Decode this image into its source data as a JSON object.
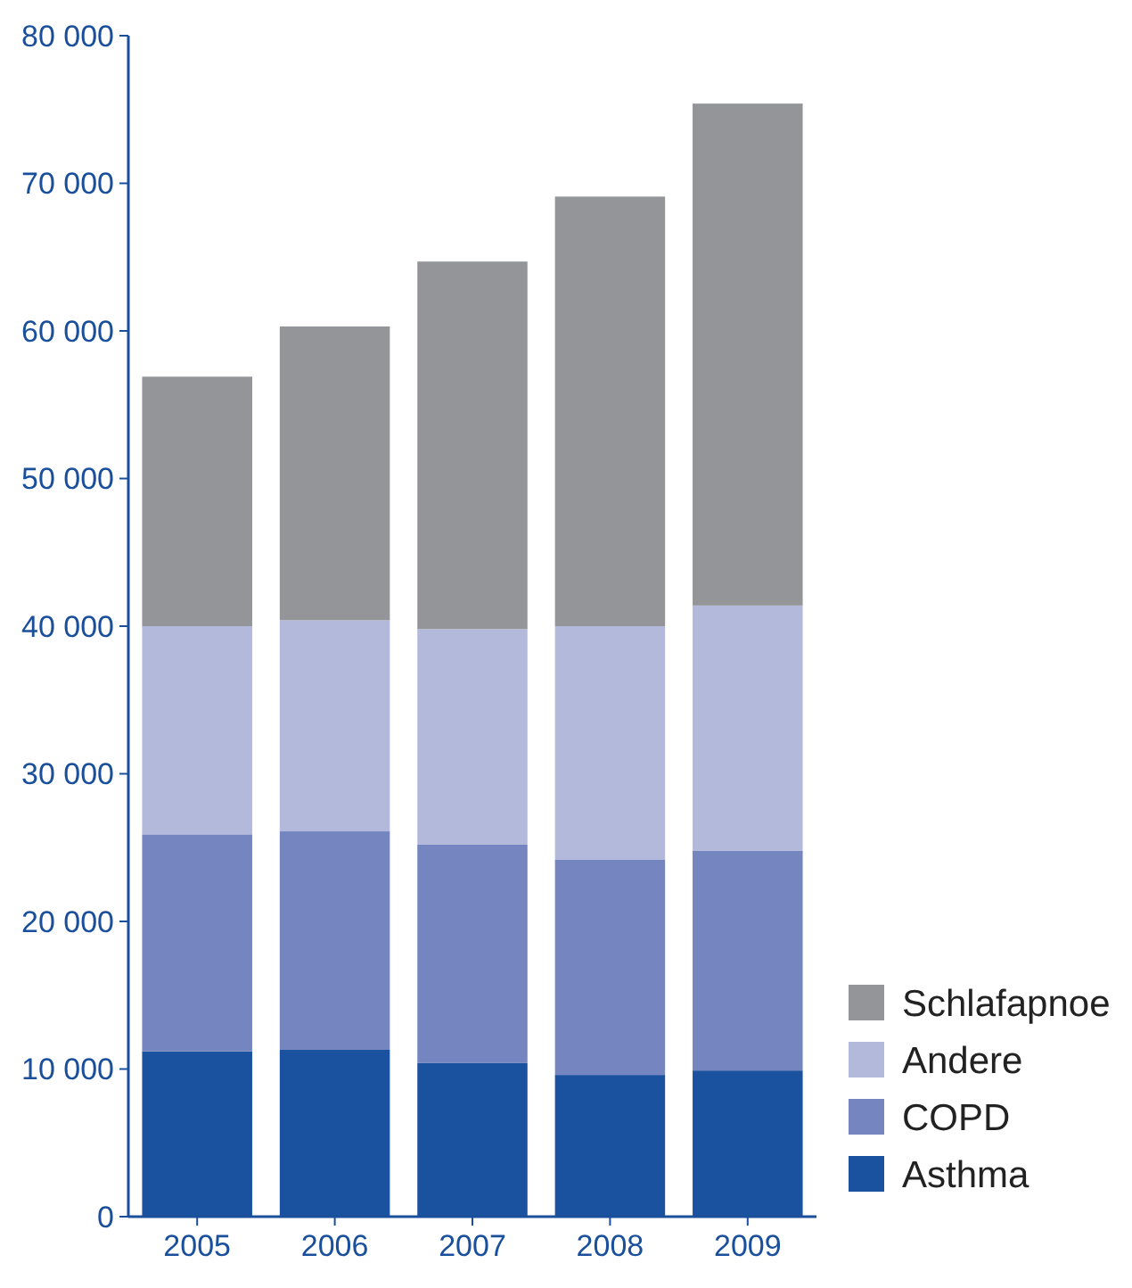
{
  "chart_data": {
    "type": "bar",
    "stacked": true,
    "categories": [
      "2005",
      "2006",
      "2007",
      "2008",
      "2009"
    ],
    "series": [
      {
        "name": "Asthma",
        "color": "#1a52a0",
        "values": [
          11200,
          11300,
          10400,
          9600,
          9900
        ]
      },
      {
        "name": "COPD",
        "color": "#7585bf",
        "values": [
          14700,
          14800,
          14800,
          14600,
          14900
        ]
      },
      {
        "name": "Andere",
        "color": "#b3b9db",
        "values": [
          14100,
          14300,
          14600,
          15800,
          16600
        ]
      },
      {
        "name": "Schlafapnoe",
        "color": "#939598",
        "values": [
          16900,
          19900,
          24900,
          29100,
          34000
        ]
      }
    ],
    "ylim": [
      0,
      80000
    ],
    "yticks": [
      0,
      {
        "value": 10000,
        "label": "10 000"
      },
      {
        "value": 20000,
        "label": "20 000"
      },
      {
        "value": 30000,
        "label": "30 000"
      },
      {
        "value": 40000,
        "label": "40 000"
      },
      {
        "value": 50000,
        "label": "50 000"
      },
      {
        "value": 60000,
        "label": "60 000"
      },
      {
        "value": 70000,
        "label": "70 000"
      },
      {
        "value": 80000,
        "label": "80 000"
      }
    ],
    "grid": false,
    "legend": "bottom right"
  }
}
